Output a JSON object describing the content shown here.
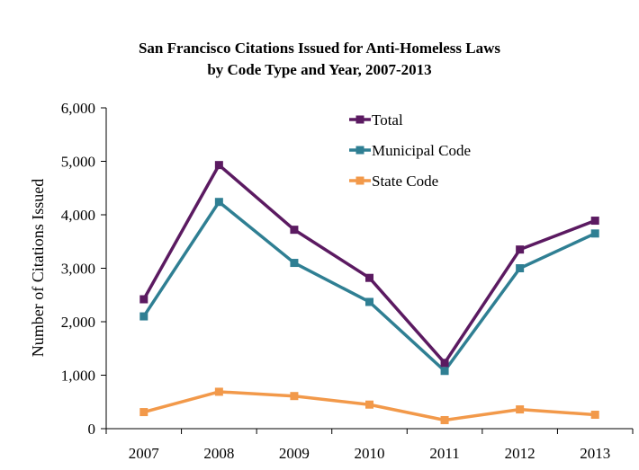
{
  "chart_data": {
    "type": "line",
    "title": "San Francisco Citations Issued for Anti-Homeless Laws",
    "subtitle": "by Code Type and Year, 2007-2013",
    "xlabel": "",
    "ylabel": "Number of Citations Issued",
    "categories": [
      "2007",
      "2008",
      "2009",
      "2010",
      "2011",
      "2012",
      "2013"
    ],
    "ylim": [
      0,
      6000
    ],
    "yticks": [
      0,
      1000,
      2000,
      3000,
      4000,
      5000,
      6000
    ],
    "ytick_labels": [
      "0",
      "1,000",
      "2,000",
      "3,000",
      "4,000",
      "5,000",
      "6,000"
    ],
    "grid": false,
    "legend_position": "top-center",
    "series": [
      {
        "name": "Total",
        "color": "#5b1a61",
        "marker": "square",
        "values": [
          2420,
          4930,
          3720,
          2820,
          1230,
          3350,
          3890
        ]
      },
      {
        "name": "Municipal Code",
        "color": "#2f7f93",
        "marker": "square",
        "values": [
          2100,
          4240,
          3100,
          2370,
          1080,
          3000,
          3650
        ]
      },
      {
        "name": "State Code",
        "color": "#f2994a",
        "marker": "square",
        "values": [
          310,
          690,
          610,
          450,
          160,
          360,
          260
        ]
      }
    ]
  }
}
